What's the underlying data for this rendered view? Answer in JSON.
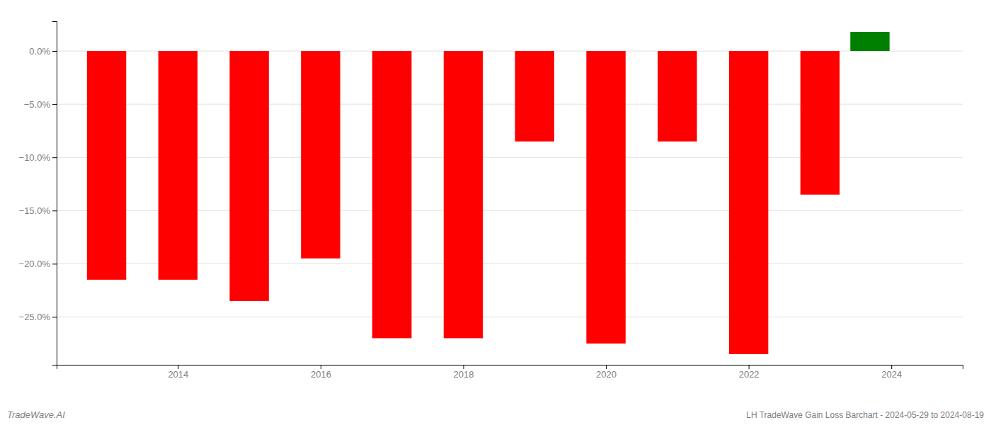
{
  "chart_data": {
    "type": "bar",
    "title": "LH TradeWave Gain Loss Barchart - 2024-05-29 to 2024-08-19",
    "annotations": [
      "TradeWave.AI"
    ],
    "x": [
      2013,
      2014,
      2015,
      2016,
      2017,
      2018,
      2019,
      2020,
      2021,
      2022,
      2023,
      2023.7
    ],
    "values": [
      -0.215,
      -0.215,
      -0.235,
      -0.195,
      -0.27,
      -0.27,
      -0.085,
      -0.275,
      -0.085,
      -0.285,
      -0.135,
      0.018
    ],
    "colors": [
      "red",
      "red",
      "red",
      "red",
      "red",
      "red",
      "red",
      "red",
      "red",
      "red",
      "red",
      "green"
    ],
    "xlim": [
      2012.3,
      2025.0
    ],
    "xticks": [
      2014,
      2016,
      2018,
      2020,
      2022,
      2024
    ],
    "ylim": [
      -0.295,
      0.028
    ],
    "yticks": [
      {
        "value": -0.25,
        "label": "−25.0%"
      },
      {
        "value": -0.2,
        "label": "−20.0%"
      },
      {
        "value": -0.15,
        "label": "−15.0%"
      },
      {
        "value": -0.1,
        "label": "−10.0%"
      },
      {
        "value": -0.05,
        "label": "−5.0%"
      },
      {
        "value": 0,
        "label": "0.0%"
      }
    ],
    "grid": true
  }
}
